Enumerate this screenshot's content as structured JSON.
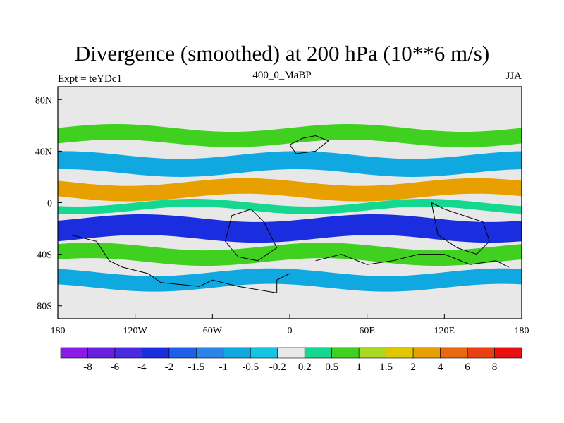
{
  "chart_data": {
    "type": "heatmap",
    "title": "Divergence (smoothed) at 200 hPa (10**6 m/s)",
    "left_label": "Expt = teYDc1",
    "center_label": "400_0_MaBP",
    "right_label": "JJA",
    "x_tick_labels": [
      "180",
      "120W",
      "60W",
      "0",
      "60E",
      "120E",
      "180"
    ],
    "x_tick_values": [
      -180,
      -120,
      -60,
      0,
      60,
      120,
      180
    ],
    "y_tick_labels": [
      "80N",
      "40N",
      "0",
      "40S",
      "80S"
    ],
    "y_tick_values": [
      80,
      40,
      0,
      -40,
      -80
    ],
    "xlim": [
      -180,
      180
    ],
    "ylim": [
      -90,
      90
    ],
    "colorbar": {
      "labels": [
        "-8",
        "-6",
        "-4",
        "-2",
        "-1.5",
        "-1",
        "-0.5",
        "-0.2",
        "0.2",
        "0.5",
        "1",
        "1.5",
        "2",
        "4",
        "6",
        "8"
      ],
      "colors": [
        "#8a1ce6",
        "#6a1fe0",
        "#4a2ae0",
        "#1a2ee0",
        "#1e5ee8",
        "#2a86e6",
        "#10a8e0",
        "#14c4e2",
        "#e8e8e8",
        "#14d890",
        "#40d020",
        "#a8d820",
        "#e0c800",
        "#e8a000",
        "#e86a10",
        "#e84010",
        "#e81010"
      ]
    },
    "bands": [
      {
        "lat": 52,
        "halfwidth": 6,
        "level": 10
      },
      {
        "lat": 30,
        "halfwidth": 7,
        "level": 6
      },
      {
        "lat": 10,
        "halfwidth": 6,
        "level": 13
      },
      {
        "lat": -3,
        "halfwidth": 3,
        "level": 9
      },
      {
        "lat": -20,
        "halfwidth": 8,
        "level": 3
      },
      {
        "lat": -40,
        "halfwidth": 6,
        "level": 10
      },
      {
        "lat": -60,
        "halfwidth": 6,
        "level": 6
      }
    ]
  }
}
